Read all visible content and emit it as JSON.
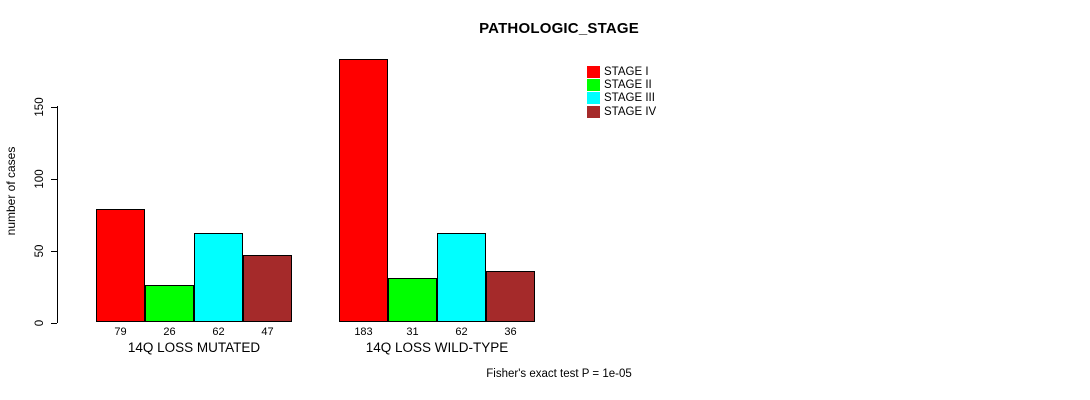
{
  "title": "PATHOLOGIC_STAGE",
  "y_axis_label": "number of cases",
  "footer_note": "Fisher's exact test P = 1e-05",
  "legend": [
    {
      "label": "STAGE I",
      "color": "#ff0000"
    },
    {
      "label": "STAGE II",
      "color": "#00ff00"
    },
    {
      "label": "STAGE III",
      "color": "#00ffff"
    },
    {
      "label": "STAGE IV",
      "color": "#a52a2a"
    }
  ],
  "chart_data": {
    "type": "bar",
    "title": "PATHOLOGIC_STAGE",
    "xlabel": "",
    "ylabel": "number of cases",
    "yticks": [
      0,
      50,
      100,
      150
    ],
    "ylim": [
      0,
      190
    ],
    "grid": false,
    "legend_position": "top-right",
    "series": [
      "STAGE I",
      "STAGE II",
      "STAGE III",
      "STAGE IV"
    ],
    "series_colors": [
      "#ff0000",
      "#00ff00",
      "#00ffff",
      "#a52a2a"
    ],
    "groups": [
      {
        "label": "14Q LOSS MUTATED",
        "values": [
          79,
          26,
          62,
          47
        ]
      },
      {
        "label": "14Q LOSS WILD-TYPE",
        "values": [
          183,
          31,
          62,
          36
        ]
      }
    ],
    "annotation": "Fisher's exact test P = 1e-05"
  }
}
